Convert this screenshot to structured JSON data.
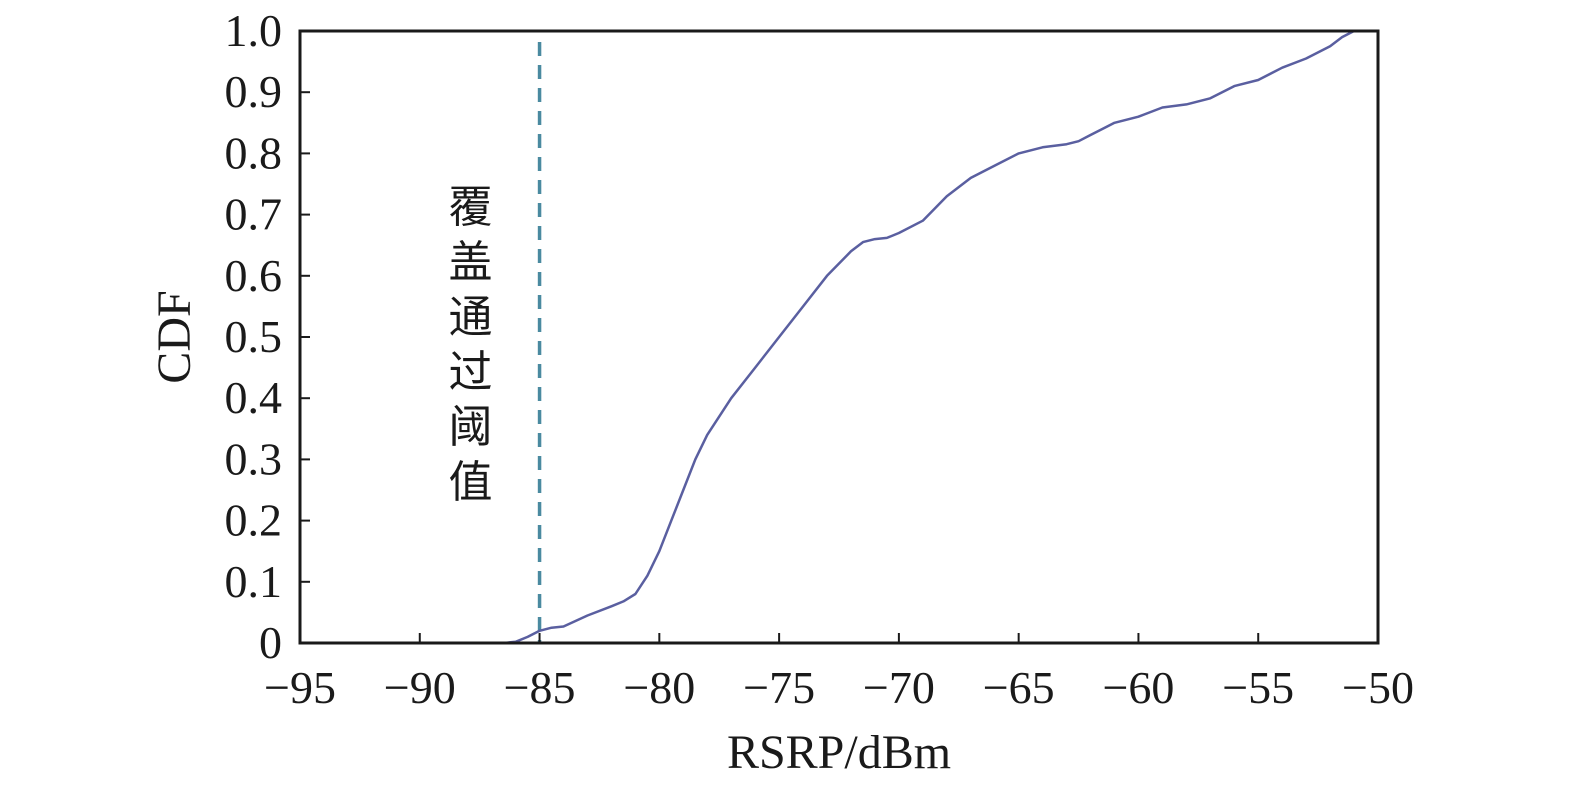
{
  "chart_data": {
    "type": "line",
    "xlabel": "RSRP/dBm",
    "ylabel": "CDF",
    "xlim": [
      -95,
      -50
    ],
    "ylim": [
      0,
      1.0
    ],
    "xticks": [
      -95,
      -90,
      -85,
      -80,
      -75,
      -70,
      -65,
      -60,
      -55,
      -50
    ],
    "xtick_labels": [
      "−95",
      "−90",
      "−85",
      "−80",
      "−75",
      "−70",
      "−65",
      "−60",
      "−55",
      "−50"
    ],
    "yticks": [
      0,
      0.1,
      0.2,
      0.3,
      0.4,
      0.5,
      0.6,
      0.7,
      0.8,
      0.9,
      1.0
    ],
    "ytick_labels": [
      "0",
      "0.1",
      "0.2",
      "0.3",
      "0.4",
      "0.5",
      "0.6",
      "0.7",
      "0.8",
      "0.9",
      "1.0"
    ],
    "grid": false,
    "threshold": {
      "x": -85,
      "label": "覆盖通过阈值",
      "color": "#4a8aa0",
      "style": "dashed"
    },
    "series": [
      {
        "color": "#5a5fa0",
        "x": [
          -90,
          -86.5,
          -86,
          -85.5,
          -85,
          -84.5,
          -84,
          -83,
          -82,
          -81.5,
          -81,
          -80.5,
          -80,
          -79.5,
          -79,
          -78.5,
          -78,
          -77.5,
          -77,
          -76,
          -75,
          -74,
          -73,
          -72,
          -71.5,
          -71,
          -70.5,
          -70,
          -69,
          -68,
          -67,
          -66,
          -65,
          -64,
          -63,
          -62.5,
          -62,
          -61,
          -60,
          -59,
          -58,
          -57,
          -56,
          -55,
          -54,
          -53,
          -52,
          -51.5,
          -51
        ],
        "y": [
          0,
          0,
          0.002,
          0.01,
          0.02,
          0.025,
          0.027,
          0.045,
          0.06,
          0.068,
          0.08,
          0.11,
          0.15,
          0.2,
          0.25,
          0.3,
          0.34,
          0.37,
          0.4,
          0.45,
          0.5,
          0.55,
          0.6,
          0.64,
          0.655,
          0.66,
          0.662,
          0.67,
          0.69,
          0.73,
          0.76,
          0.78,
          0.8,
          0.81,
          0.815,
          0.82,
          0.83,
          0.85,
          0.86,
          0.875,
          0.88,
          0.89,
          0.91,
          0.92,
          0.94,
          0.955,
          0.975,
          0.99,
          1.0
        ]
      }
    ]
  }
}
